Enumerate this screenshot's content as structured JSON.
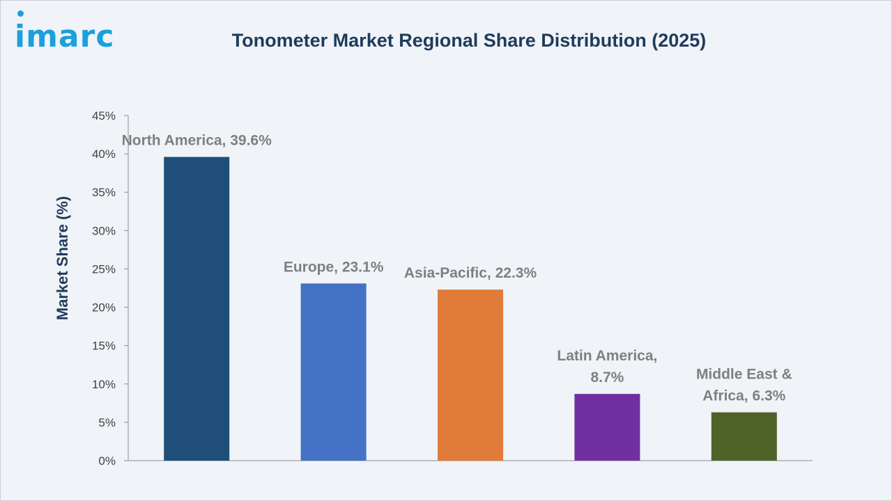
{
  "brand": {
    "logo_text": "imarc"
  },
  "chart_data": {
    "type": "bar",
    "title": "Tonometer Market Regional Share Distribution (2025)",
    "ylabel": "Market Share (%)",
    "xlabel": "",
    "ylim": [
      0,
      45
    ],
    "yticks": [
      0,
      5,
      10,
      15,
      20,
      25,
      30,
      35,
      40,
      45
    ],
    "ytick_labels": [
      "0%",
      "5%",
      "10%",
      "15%",
      "20%",
      "25%",
      "30%",
      "35%",
      "40%",
      "45%"
    ],
    "grid": false,
    "legend": "none",
    "categories": [
      "North America",
      "Europe",
      "Asia-Pacific",
      "Latin America",
      "Middle East & Africa"
    ],
    "values": [
      39.6,
      23.1,
      22.3,
      8.7,
      6.3
    ],
    "colors": [
      "#1f4e79",
      "#4472c4",
      "#e07b39",
      "#7030a0",
      "#4f6228"
    ],
    "data_labels": [
      [
        "North America, 39.6%"
      ],
      [
        "Europe, 23.1%"
      ],
      [
        "Asia-Pacific, 22.3%"
      ],
      [
        "Latin America,",
        "8.7%"
      ],
      [
        "Middle East &",
        "Africa, 6.3%"
      ]
    ]
  }
}
